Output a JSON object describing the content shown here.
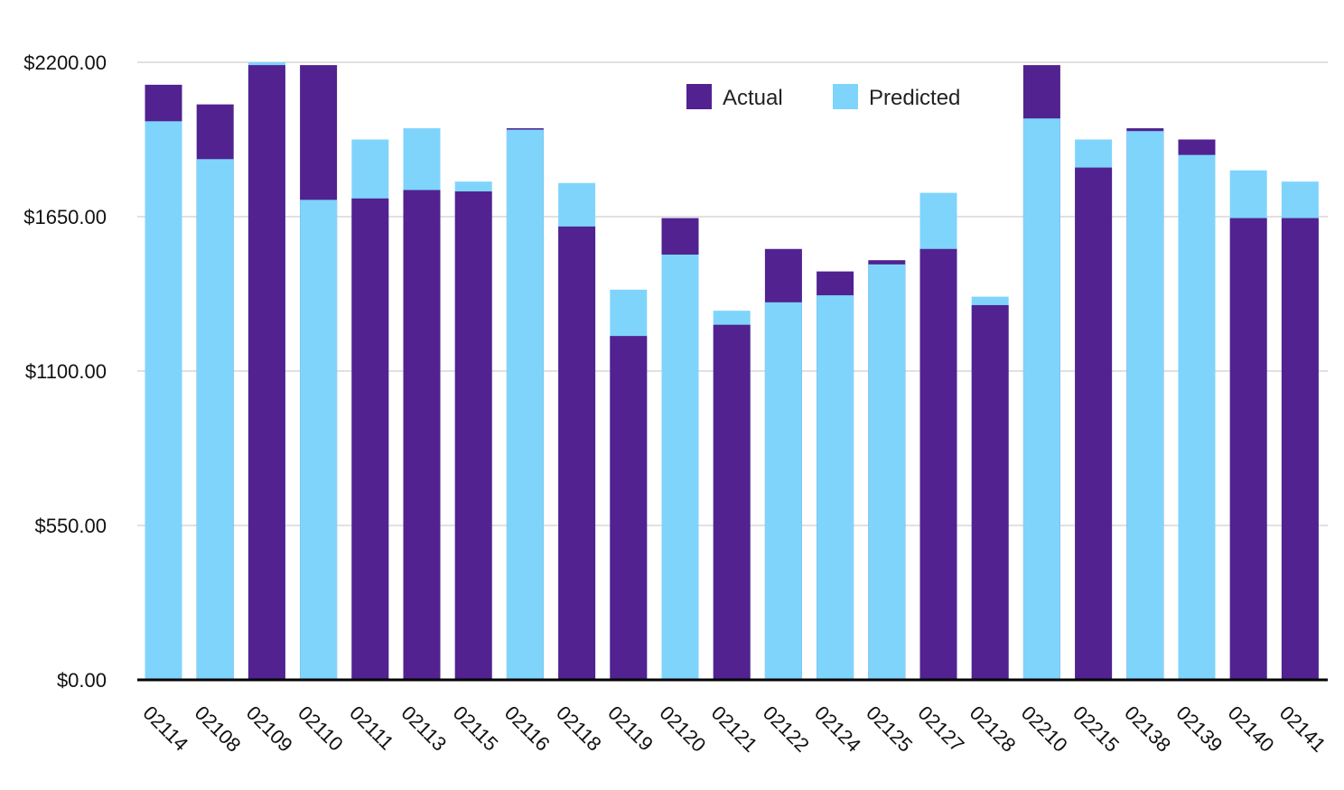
{
  "chart_data": {
    "type": "bar",
    "stacked_overlap": true,
    "categories": [
      "02114",
      "02108",
      "02109",
      "02110",
      "02111",
      "02113",
      "02115",
      "02116",
      "02118",
      "02119",
      "02120",
      "02121",
      "02122",
      "02124",
      "02125",
      "02127",
      "02128",
      "02210",
      "02215",
      "02138",
      "02139",
      "02140",
      "02141"
    ],
    "series": [
      {
        "name": "Actual",
        "color": "#512290",
        "values": [
          2120,
          2050,
          2190,
          2190,
          1715,
          1745,
          1740,
          1965,
          1615,
          1225,
          1645,
          1265,
          1535,
          1455,
          1495,
          1535,
          1335,
          2190,
          1825,
          1965,
          1925,
          1645,
          1645
        ]
      },
      {
        "name": "Predicted",
        "color": "#7fd4fc",
        "values": [
          1990,
          1855,
          2200,
          1710,
          1925,
          1965,
          1775,
          1960,
          1770,
          1390,
          1515,
          1315,
          1345,
          1370,
          1480,
          1735,
          1365,
          2000,
          1925,
          1955,
          1870,
          1815,
          1775
        ]
      }
    ],
    "yticks": [
      "$0.00",
      "$550.00",
      "$1100.00",
      "$1650.00",
      "$2200.00"
    ],
    "ytick_values": [
      0,
      550,
      1100,
      1650,
      2200
    ],
    "ylim": [
      0,
      2200
    ],
    "grid": true,
    "legend_position": "top-center",
    "title": "",
    "xlabel": "",
    "ylabel": ""
  }
}
